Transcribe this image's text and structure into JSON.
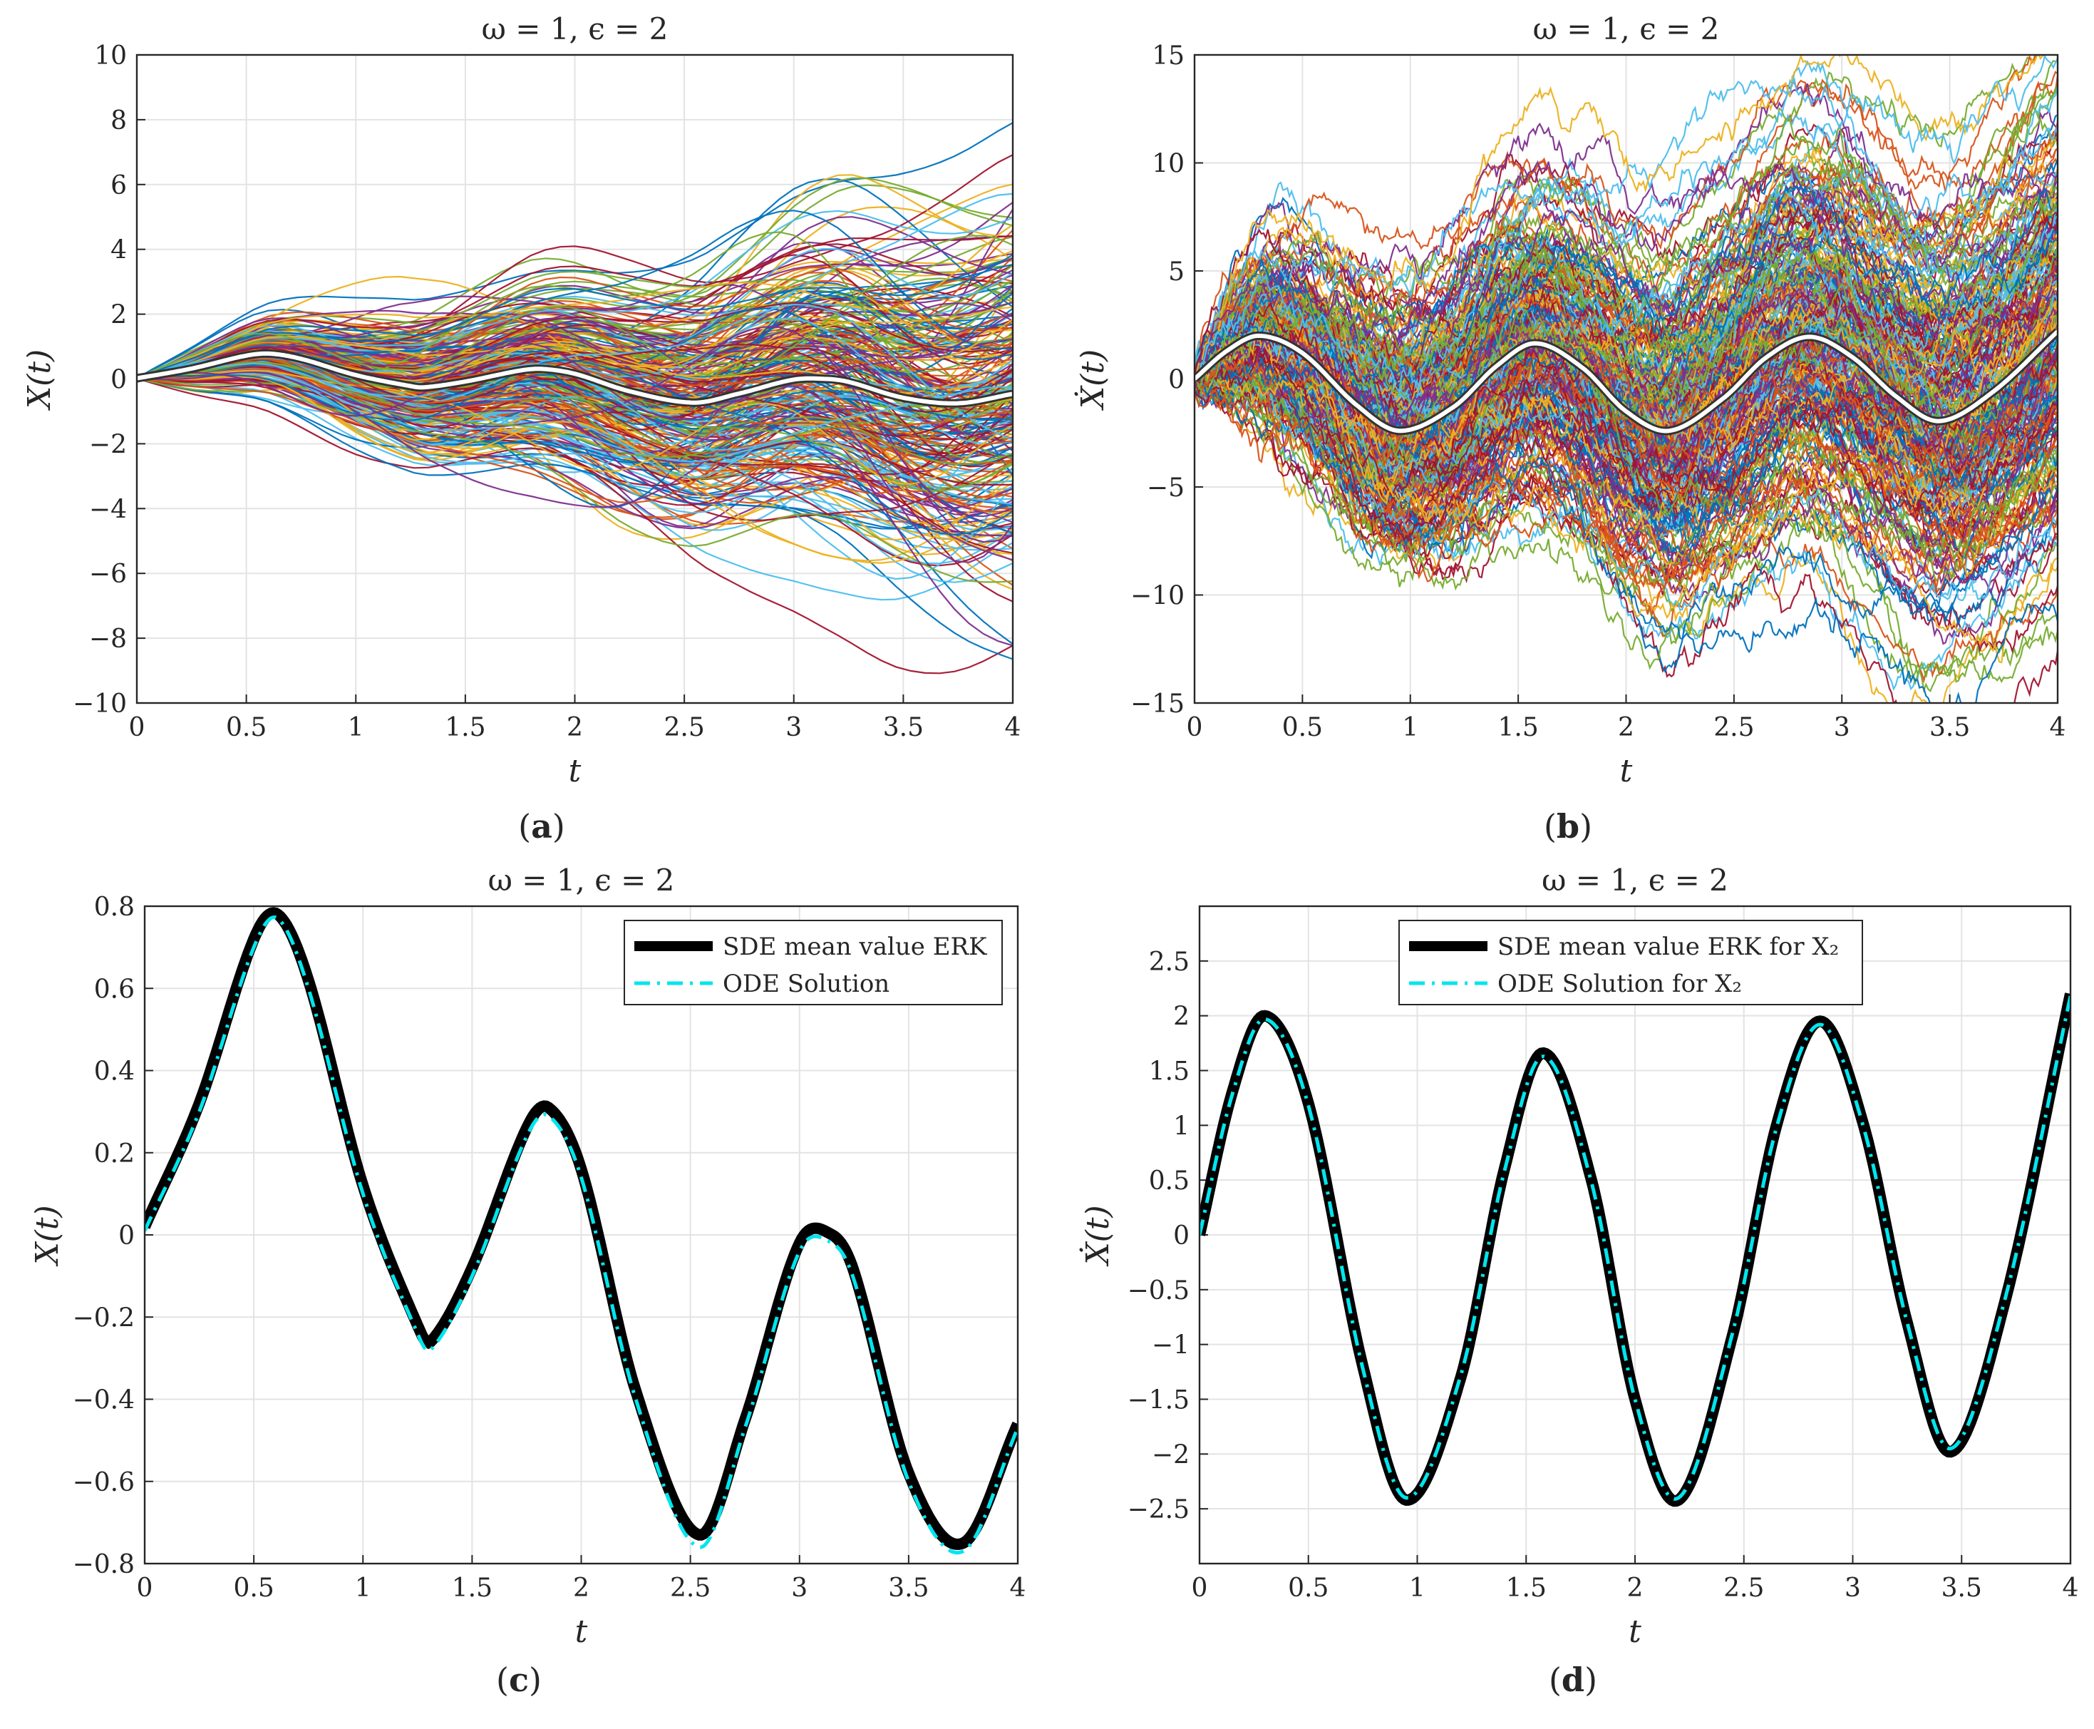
{
  "chart_data": [
    {
      "panel": "(a)",
      "type": "line",
      "title": "ω = 1, ϵ = 2",
      "xlabel": "t",
      "ylabel": "X(t)",
      "xlim": [
        0,
        4
      ],
      "ylim": [
        -10,
        10
      ],
      "xticks": [
        "0",
        "0.5",
        "1",
        "1.5",
        "2",
        "2.5",
        "3",
        "3.5",
        "4"
      ],
      "yticks": [
        "−10",
        "−8",
        "−6",
        "−4",
        "−2",
        "0",
        "2",
        "4",
        "6",
        "8",
        "10"
      ],
      "grid": true,
      "mean_series": {
        "name": "mean",
        "color": "#ffffff",
        "x": [
          0,
          0.25,
          0.5,
          0.61,
          0.75,
          1.0,
          1.25,
          1.31,
          1.5,
          1.75,
          1.85,
          2.0,
          2.25,
          2.54,
          2.75,
          3.0,
          3.15,
          3.25,
          3.5,
          3.75,
          4.0
        ],
        "values": [
          0.02,
          0.32,
          0.72,
          0.78,
          0.62,
          0.12,
          -0.22,
          -0.26,
          -0.08,
          0.26,
          0.31,
          0.16,
          -0.38,
          -0.73,
          -0.45,
          -0.02,
          0.0,
          -0.09,
          -0.58,
          -0.75,
          -0.46
        ]
      },
      "sample_paths": {
        "count": 300,
        "end_spread_sd": 2.6,
        "smooth": true
      }
    },
    {
      "panel": "(b)",
      "type": "line",
      "title": "ω = 1, ϵ = 2",
      "xlabel": "t",
      "ylabel": "Ẋ(t)",
      "xlim": [
        0,
        4
      ],
      "ylim": [
        -15,
        15
      ],
      "xticks": [
        "0",
        "0.5",
        "1",
        "1.5",
        "2",
        "2.5",
        "3",
        "3.5",
        "4"
      ],
      "yticks": [
        "−15",
        "−10",
        "−5",
        "0",
        "5",
        "10",
        "15"
      ],
      "grid": true,
      "mean_series": {
        "name": "mean",
        "color": "#ffffff",
        "x": [
          0,
          0.15,
          0.3,
          0.5,
          0.75,
          0.95,
          1.2,
          1.4,
          1.58,
          1.8,
          2.0,
          2.2,
          2.45,
          2.65,
          2.85,
          3.05,
          3.25,
          3.45,
          3.7,
          4.0
        ],
        "values": [
          0,
          1.3,
          2.0,
          1.2,
          -1.2,
          -2.4,
          -1.3,
          0.6,
          1.65,
          0.5,
          -1.5,
          -2.4,
          -0.9,
          1.0,
          1.95,
          1.0,
          -0.8,
          -1.95,
          -0.6,
          2.2
        ]
      },
      "sample_paths": {
        "count": 300,
        "end_spread_sd": 3.4,
        "smooth": false
      }
    },
    {
      "panel": "(c)",
      "type": "line",
      "title": "ω = 1, ϵ = 2",
      "xlabel": "t",
      "ylabel": "X(t)",
      "xlim": [
        0,
        4
      ],
      "ylim": [
        -0.8,
        0.8
      ],
      "xticks": [
        "0",
        "0.5",
        "1",
        "1.5",
        "2",
        "2.5",
        "3",
        "3.5",
        "4"
      ],
      "yticks": [
        "−0.8",
        "−0.6",
        "−0.4",
        "−0.2",
        "0",
        "0.2",
        "0.4",
        "0.6",
        "0.8"
      ],
      "grid": true,
      "legend": "top-right",
      "series": [
        {
          "name": "SDE mean value ERK",
          "color": "#000000",
          "style": "solid",
          "x": [
            0,
            0.25,
            0.5,
            0.61,
            0.75,
            1.0,
            1.25,
            1.31,
            1.5,
            1.75,
            1.85,
            2.0,
            2.25,
            2.54,
            2.75,
            3.0,
            3.15,
            3.25,
            3.5,
            3.75,
            4.0
          ],
          "values": [
            0.02,
            0.32,
            0.72,
            0.78,
            0.62,
            0.12,
            -0.22,
            -0.26,
            -0.08,
            0.26,
            0.31,
            0.16,
            -0.38,
            -0.73,
            -0.45,
            -0.02,
            0.0,
            -0.09,
            -0.58,
            -0.75,
            -0.46
          ]
        },
        {
          "name": "ODE Solution",
          "color": "#00e5ee",
          "style": "dash-dot",
          "x": [
            0,
            0.25,
            0.5,
            0.61,
            0.75,
            1.0,
            1.25,
            1.31,
            1.5,
            1.75,
            1.85,
            2.0,
            2.25,
            2.54,
            2.75,
            3.0,
            3.15,
            3.25,
            3.5,
            3.75,
            4.0
          ],
          "values": [
            0.01,
            0.3,
            0.7,
            0.77,
            0.6,
            0.1,
            -0.24,
            -0.28,
            -0.1,
            0.24,
            0.29,
            0.14,
            -0.4,
            -0.76,
            -0.47,
            -0.04,
            -0.02,
            -0.11,
            -0.6,
            -0.77,
            -0.47
          ]
        }
      ]
    },
    {
      "panel": "(d)",
      "type": "line",
      "title": "ω = 1, ϵ = 2",
      "xlabel": "t",
      "ylabel": "Ẋ(t)",
      "xlim": [
        0,
        4
      ],
      "ylim": [
        -3,
        3
      ],
      "xticks": [
        "0",
        "0.5",
        "1",
        "1.5",
        "2",
        "2.5",
        "3",
        "3.5",
        "4"
      ],
      "yticks": [
        "−2.5",
        "−2",
        "−1.5",
        "−1",
        "−0.5",
        "0",
        "0.5",
        "1",
        "1.5",
        "2",
        "2.5"
      ],
      "grid": true,
      "legend": "top-center",
      "series": [
        {
          "name": "SDE mean value ERK for X₂",
          "color": "#000000",
          "style": "solid",
          "x": [
            0,
            0.15,
            0.3,
            0.5,
            0.75,
            0.95,
            1.2,
            1.4,
            1.58,
            1.8,
            2.0,
            2.2,
            2.45,
            2.65,
            2.85,
            3.05,
            3.25,
            3.45,
            3.7,
            4.0
          ],
          "values": [
            0,
            1.3,
            2.0,
            1.2,
            -1.2,
            -2.42,
            -1.3,
            0.6,
            1.66,
            0.5,
            -1.5,
            -2.42,
            -0.9,
            1.0,
            1.95,
            1.0,
            -0.8,
            -1.98,
            -0.6,
            2.2
          ]
        },
        {
          "name": "ODE Solution for X₂",
          "color": "#00e5ee",
          "style": "dash-dot",
          "x": [
            0,
            0.15,
            0.3,
            0.5,
            0.75,
            0.95,
            1.2,
            1.4,
            1.58,
            1.8,
            2.0,
            2.2,
            2.45,
            2.65,
            2.85,
            3.05,
            3.25,
            3.45,
            3.7,
            4.0
          ],
          "values": [
            0,
            1.28,
            1.97,
            1.18,
            -1.22,
            -2.4,
            -1.28,
            0.58,
            1.63,
            0.48,
            -1.5,
            -2.4,
            -0.88,
            0.98,
            1.92,
            0.98,
            -0.8,
            -1.95,
            -0.58,
            2.18
          ]
        }
      ]
    }
  ]
}
